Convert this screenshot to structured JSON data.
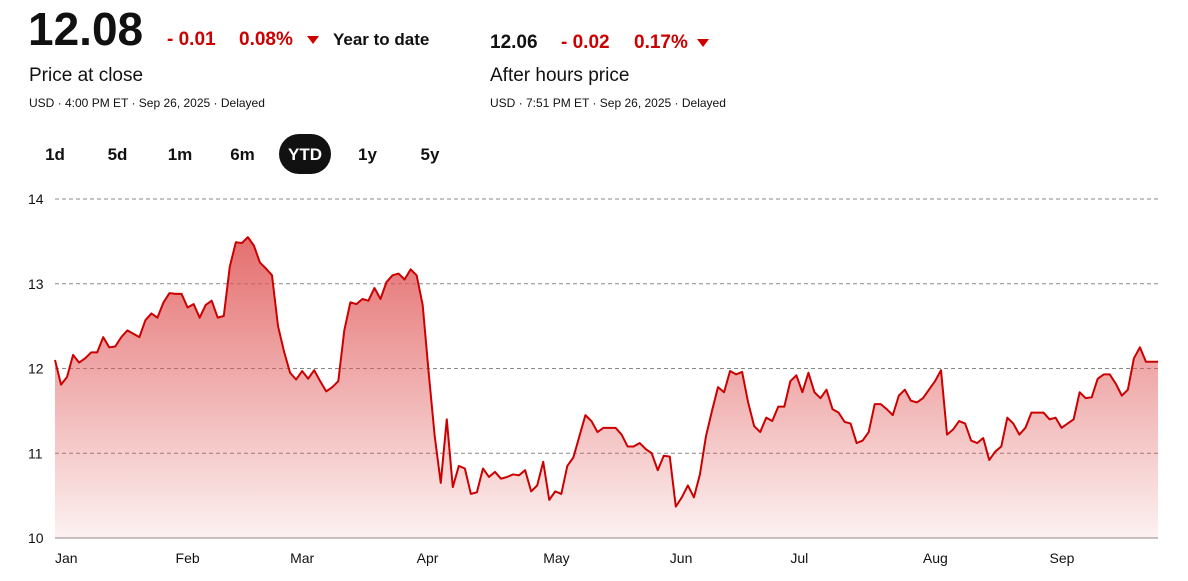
{
  "header": {
    "price": "12.08",
    "change": "- 0.01",
    "change_pct": "0.08%",
    "period": "Year to date",
    "price_label": "Price at close",
    "price_note": "USD · 4:00 PM ET · Sep 26, 2025 · Delayed",
    "after_price": "12.06",
    "after_change": "- 0.02",
    "after_change_pct": "0.17%",
    "after_label": "After hours price",
    "after_note": "USD · 7:51 PM ET · Sep 26, 2025 · Delayed"
  },
  "ranges": {
    "buttons": [
      "1d",
      "5d",
      "1m",
      "6m",
      "YTD",
      "1y",
      "5y"
    ],
    "active": "YTD"
  },
  "chart_data": {
    "type": "line",
    "color": "#cc0000",
    "grid": true,
    "categories": [
      "Jan",
      null,
      null,
      null,
      null,
      null,
      null,
      null,
      null,
      null,
      null,
      null,
      null,
      null,
      null,
      null,
      null,
      null,
      null,
      null,
      "Feb",
      null,
      null,
      null,
      null,
      null,
      null,
      null,
      null,
      null,
      null,
      null,
      null,
      null,
      null,
      null,
      null,
      null,
      null,
      "Mar",
      null,
      null,
      null,
      null,
      null,
      null,
      null,
      null,
      null,
      null,
      null,
      null,
      null,
      null,
      null,
      null,
      null,
      null,
      null,
      null,
      "Apr",
      null,
      null,
      null,
      null,
      null,
      null,
      null,
      null,
      null,
      null,
      null,
      null,
      null,
      null,
      null,
      null,
      null,
      null,
      null,
      null,
      "May",
      null,
      null,
      null,
      null,
      null,
      null,
      null,
      null,
      null,
      null,
      null,
      null,
      null,
      null,
      null,
      null,
      null,
      null,
      null,
      null,
      "Jun",
      null,
      null,
      null,
      null,
      null,
      null,
      null,
      null,
      null,
      null,
      null,
      null,
      null,
      null,
      null,
      null,
      null,
      null,
      null,
      "Jul",
      null,
      null,
      null,
      null,
      null,
      null,
      null,
      null,
      null,
      null,
      null,
      null,
      null,
      null,
      null,
      null,
      null,
      null,
      null,
      null,
      null,
      "Aug",
      null,
      null,
      null,
      null,
      null,
      null,
      null,
      null,
      null,
      null,
      null,
      null,
      null,
      null,
      null,
      null,
      null,
      null,
      null,
      null,
      "Sep",
      null,
      null,
      null,
      null,
      null,
      null,
      null,
      null,
      null,
      null,
      null,
      null,
      null,
      null,
      null,
      null,
      null,
      null
    ],
    "values": [
      12.1,
      11.81,
      11.9,
      12.16,
      12.07,
      12.12,
      12.19,
      12.19,
      12.37,
      12.25,
      12.26,
      12.37,
      12.45,
      12.41,
      12.37,
      12.57,
      12.65,
      12.6,
      12.78,
      12.89,
      12.88,
      12.88,
      12.72,
      12.76,
      12.6,
      12.75,
      12.8,
      12.6,
      12.62,
      13.2,
      13.49,
      13.48,
      13.55,
      13.45,
      13.25,
      13.18,
      13.1,
      12.5,
      12.2,
      11.95,
      11.87,
      11.97,
      11.88,
      11.98,
      11.85,
      11.73,
      11.78,
      11.85,
      12.45,
      12.78,
      12.76,
      12.82,
      12.8,
      12.95,
      12.82,
      13.02,
      13.1,
      13.12,
      13.05,
      13.17,
      13.1,
      12.75,
      11.95,
      11.2,
      10.65,
      11.4,
      10.6,
      10.85,
      10.82,
      10.52,
      10.54,
      10.82,
      10.72,
      10.78,
      10.7,
      10.72,
      10.75,
      10.74,
      10.8,
      10.55,
      10.62,
      10.9,
      10.45,
      10.55,
      10.52,
      10.85,
      10.95,
      11.2,
      11.45,
      11.38,
      11.25,
      11.3,
      11.3,
      11.3,
      11.22,
      11.08,
      11.08,
      11.12,
      11.05,
      11.0,
      10.8,
      10.97,
      10.96,
      10.37,
      10.48,
      10.62,
      10.48,
      10.75,
      11.2,
      11.5,
      11.78,
      11.72,
      11.97,
      11.93,
      11.96,
      11.6,
      11.32,
      11.25,
      11.42,
      11.38,
      11.55,
      11.55,
      11.85,
      11.92,
      11.72,
      11.95,
      11.72,
      11.65,
      11.75,
      11.52,
      11.48,
      11.37,
      11.35,
      11.12,
      11.15,
      11.25,
      11.58,
      11.58,
      11.52,
      11.45,
      11.68,
      11.75,
      11.62,
      11.6,
      11.65,
      11.75,
      11.85,
      11.98,
      11.22,
      11.28,
      11.38,
      11.35,
      11.15,
      11.12,
      11.18,
      10.92,
      11.02,
      11.08,
      11.42,
      11.35,
      11.22,
      11.3,
      11.48,
      11.48,
      11.48,
      11.4,
      11.42,
      11.3,
      11.35,
      11.4,
      11.72,
      11.65,
      11.66,
      11.88,
      11.93,
      11.93,
      11.82,
      11.68,
      11.75,
      12.12,
      12.25,
      12.08,
      12.08,
      12.08
    ],
    "ylim": [
      10,
      14
    ],
    "yticks": [
      10,
      11,
      12,
      13,
      14
    ]
  }
}
